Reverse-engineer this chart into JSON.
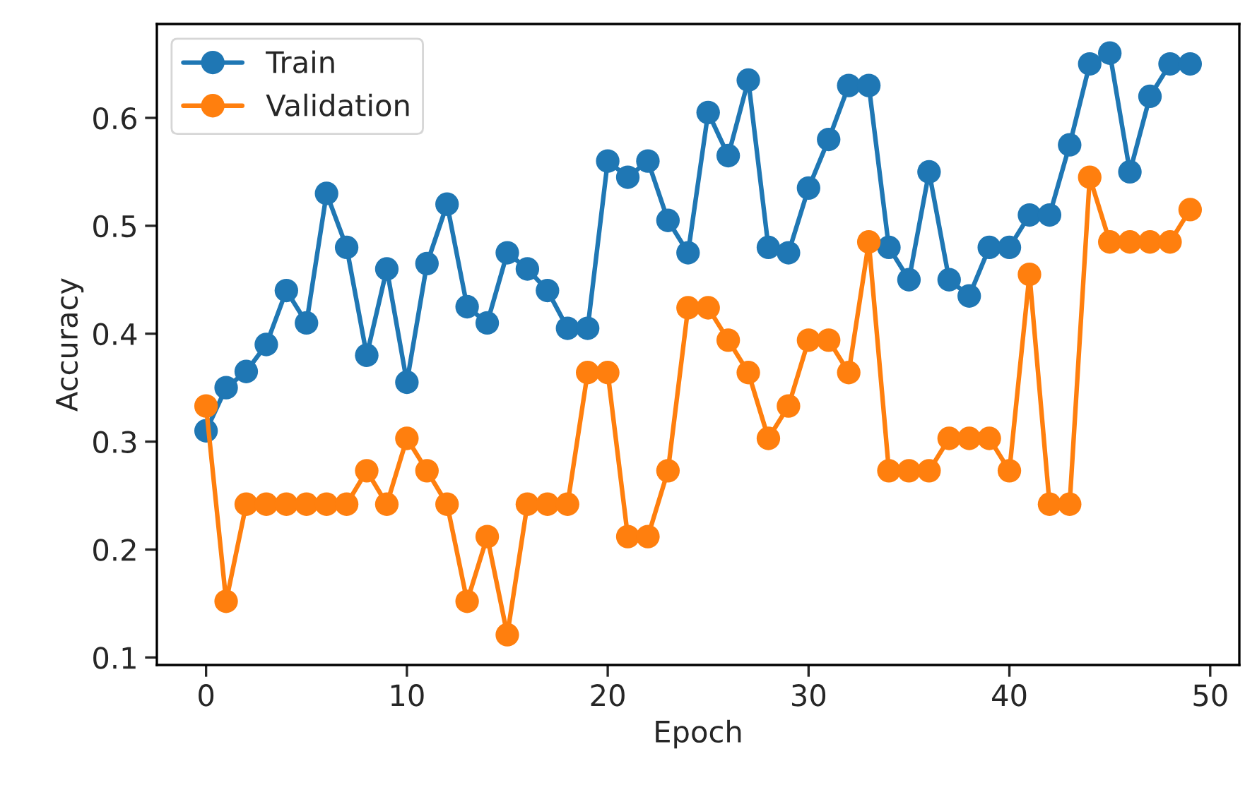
{
  "chart_data": {
    "type": "line",
    "xlabel": "Epoch",
    "ylabel": "Accuracy",
    "x": [
      0,
      1,
      2,
      3,
      4,
      5,
      6,
      7,
      8,
      9,
      10,
      11,
      12,
      13,
      14,
      15,
      16,
      17,
      18,
      19,
      20,
      21,
      22,
      23,
      24,
      25,
      26,
      27,
      28,
      29,
      30,
      31,
      32,
      33,
      34,
      35,
      36,
      37,
      38,
      39,
      40,
      41,
      42,
      43,
      44,
      45,
      46,
      47,
      48,
      49
    ],
    "series": [
      {
        "name": "Train",
        "color": "#1f77b4",
        "values": [
          0.31,
          0.35,
          0.365,
          0.39,
          0.44,
          0.41,
          0.53,
          0.48,
          0.38,
          0.46,
          0.355,
          0.465,
          0.52,
          0.425,
          0.41,
          0.475,
          0.46,
          0.44,
          0.405,
          0.405,
          0.56,
          0.545,
          0.56,
          0.505,
          0.475,
          0.605,
          0.565,
          0.635,
          0.48,
          0.475,
          0.535,
          0.58,
          0.63,
          0.63,
          0.48,
          0.45,
          0.55,
          0.45,
          0.435,
          0.48,
          0.48,
          0.51,
          0.51,
          0.575,
          0.65,
          0.66,
          0.55,
          0.62,
          0.65,
          0.65
        ]
      },
      {
        "name": "Validation",
        "color": "#ff7f0e",
        "values": [
          0.333,
          0.152,
          0.242,
          0.242,
          0.242,
          0.242,
          0.242,
          0.242,
          0.273,
          0.242,
          0.303,
          0.273,
          0.242,
          0.152,
          0.212,
          0.121,
          0.242,
          0.242,
          0.242,
          0.364,
          0.364,
          0.212,
          0.212,
          0.273,
          0.424,
          0.424,
          0.394,
          0.364,
          0.303,
          0.333,
          0.394,
          0.394,
          0.364,
          0.485,
          0.273,
          0.273,
          0.273,
          0.303,
          0.303,
          0.303,
          0.273,
          0.455,
          0.242,
          0.242,
          0.545,
          0.485,
          0.485,
          0.485,
          0.485,
          0.515
        ]
      }
    ],
    "xlim": [
      -2.45,
      51.45
    ],
    "xticks": [
      0,
      10,
      20,
      30,
      40,
      50
    ],
    "ylim": [
      0.093,
      0.687
    ],
    "yticks": [
      0.1,
      0.2,
      0.3,
      0.4,
      0.5,
      0.6
    ],
    "marker": "circle",
    "line_style": "solid",
    "legend": "top left",
    "grid": false
  }
}
